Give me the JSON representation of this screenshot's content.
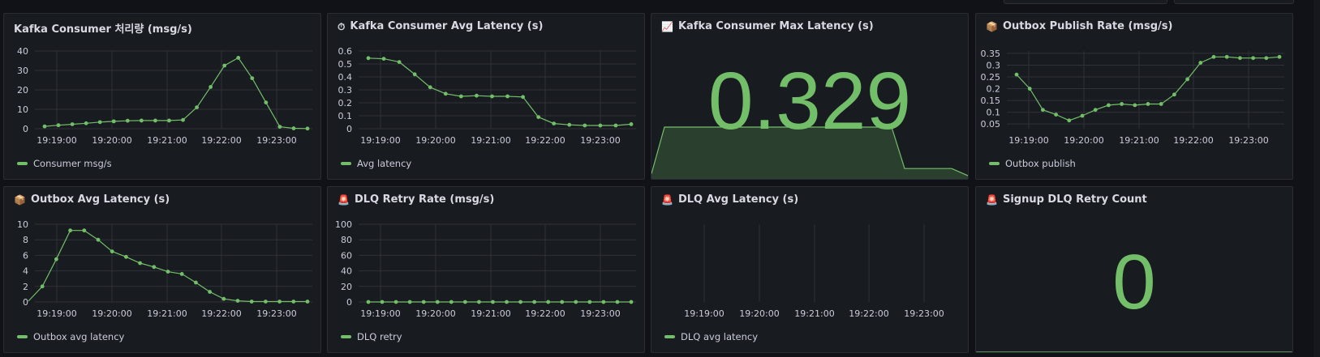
{
  "colors": {
    "series": "#73bf69",
    "panel_bg": "#181b1f",
    "grid": "#2f3238",
    "page_bg": "#111217"
  },
  "time_ticks": [
    "19:19:00",
    "19:20:00",
    "19:21:00",
    "19:22:00",
    "19:23:00"
  ],
  "panels": [
    {
      "id": "p1",
      "title": "Kafka Consumer 처리량 (msg/s)",
      "icon": "",
      "legend": "Consumer msg/s",
      "ylim": [
        0,
        40
      ],
      "yticks": [
        {
          "v": 0,
          "l": "0"
        },
        {
          "v": 10,
          "l": "10"
        },
        {
          "v": 20,
          "l": "20"
        },
        {
          "v": 30,
          "l": "30"
        },
        {
          "v": 40,
          "l": "40"
        }
      ],
      "values": [
        1.2,
        1.8,
        2.3,
        2.8,
        3.4,
        3.8,
        4.1,
        4.2,
        4.2,
        4.2,
        4.5,
        11,
        21.5,
        32.5,
        36.5,
        26,
        13.5,
        1,
        0.2,
        0.1
      ]
    },
    {
      "id": "p2",
      "title": "Kafka Consumer Avg Latency (s)",
      "icon": "⏱",
      "legend": "Avg latency",
      "ylim": [
        0,
        0.6
      ],
      "yticks": [
        {
          "v": 0,
          "l": "0"
        },
        {
          "v": 0.1,
          "l": "0.1"
        },
        {
          "v": 0.2,
          "l": "0.2"
        },
        {
          "v": 0.3,
          "l": "0.3"
        },
        {
          "v": 0.4,
          "l": "0.4"
        },
        {
          "v": 0.5,
          "l": "0.5"
        },
        {
          "v": 0.6,
          "l": "0.6"
        }
      ],
      "values": [
        0.545,
        0.54,
        0.515,
        0.42,
        0.32,
        0.27,
        0.25,
        0.255,
        0.25,
        0.25,
        0.245,
        0.09,
        0.04,
        0.03,
        0.025,
        0.025,
        0.025,
        0.035
      ]
    },
    {
      "id": "p4",
      "title": "Outbox Publish Rate (msg/s)",
      "icon": "📦",
      "legend": "Outbox publish",
      "ylim": [
        0.03,
        0.36
      ],
      "yticks": [
        {
          "v": 0.05,
          "l": "0.05"
        },
        {
          "v": 0.1,
          "l": "0.1"
        },
        {
          "v": 0.15,
          "l": "0.15"
        },
        {
          "v": 0.2,
          "l": "0.2"
        },
        {
          "v": 0.25,
          "l": "0.25"
        },
        {
          "v": 0.3,
          "l": "0.3"
        },
        {
          "v": 0.35,
          "l": "0.35"
        }
      ],
      "values": [
        0.26,
        0.2,
        0.11,
        0.09,
        0.065,
        0.085,
        0.11,
        0.13,
        0.135,
        0.13,
        0.135,
        0.135,
        0.175,
        0.24,
        0.31,
        0.335,
        0.335,
        0.33,
        0.33,
        0.33,
        0.335
      ]
    },
    {
      "id": "p5",
      "title": "Outbox Avg Latency (s)",
      "icon": "📦",
      "legend": "Outbox avg latency",
      "ylim": [
        0,
        10
      ],
      "yticks": [
        {
          "v": 0,
          "l": "0"
        },
        {
          "v": 2,
          "l": "2"
        },
        {
          "v": 4,
          "l": "4"
        },
        {
          "v": 6,
          "l": "6"
        },
        {
          "v": 8,
          "l": "8"
        },
        {
          "v": 10,
          "l": "10"
        }
      ],
      "values": [
        0.1,
        2,
        5.5,
        9.2,
        9.2,
        8,
        6.5,
        5.8,
        5,
        4.5,
        3.9,
        3.6,
        2.5,
        1.3,
        0.4,
        0.15,
        0.05,
        0.05,
        0.05,
        0.05,
        0.05
      ]
    },
    {
      "id": "p6",
      "title": "DLQ Retry Rate (msg/s)",
      "icon": "🚨",
      "legend": "DLQ retry",
      "ylim": [
        0,
        100
      ],
      "yticks": [
        {
          "v": 0,
          "l": "0"
        },
        {
          "v": 20,
          "l": "20"
        },
        {
          "v": 40,
          "l": "40"
        },
        {
          "v": 60,
          "l": "60"
        },
        {
          "v": 80,
          "l": "80"
        },
        {
          "v": 100,
          "l": "100"
        }
      ],
      "values": [
        0,
        0,
        0,
        0,
        0,
        0,
        0,
        0,
        0,
        0,
        0,
        0,
        0,
        0,
        0,
        0,
        0,
        0,
        0,
        0
      ]
    },
    {
      "id": "p7",
      "title": "DLQ Avg Latency (s)",
      "icon": "🚨",
      "legend": "DLQ avg latency",
      "ylim": [
        0,
        1
      ],
      "yticks": [],
      "values": []
    }
  ],
  "stat_panels": [
    {
      "id": "p3",
      "title": "Kafka Consumer Max Latency (s)",
      "icon": "📈",
      "value": "0.329",
      "spark": [
        0.4,
        0.4,
        0.4,
        0.4,
        0.4,
        0.4,
        0.4,
        0.4,
        0.4,
        0.4,
        0.4,
        0.4,
        0.4,
        0.4,
        0.4,
        0.4,
        0.08,
        0.08,
        0.08,
        0.02
      ]
    },
    {
      "id": "p8",
      "title": "Signup DLQ Retry Count",
      "icon": "🚨",
      "value": "0",
      "spark": [
        0,
        0,
        0,
        0,
        0,
        0,
        0,
        0,
        0,
        0
      ]
    }
  ]
}
